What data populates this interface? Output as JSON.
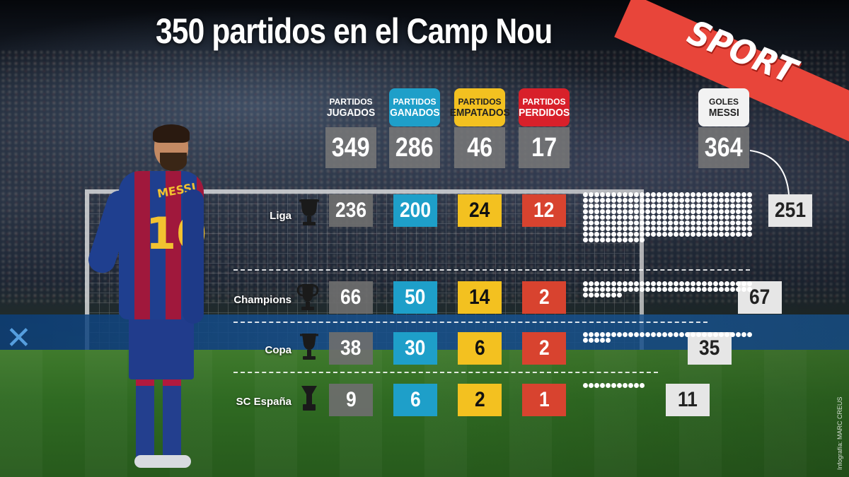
{
  "title": "350 partidos en el Camp Nou",
  "brand": "SPORT",
  "credit": "Infografía: MARC CREUS",
  "player": {
    "shirt_name": "MESSI",
    "shirt_number": "10"
  },
  "headers": [
    {
      "line1": "PARTIDOS",
      "line2": "JUGADOS",
      "style": "plain"
    },
    {
      "line1": "PARTIDOS",
      "line2": "GANADOS",
      "style": "blue"
    },
    {
      "line1": "PARTIDOS",
      "line2": "EMPATADOS",
      "style": "yellow"
    },
    {
      "line1": "PARTIDOS",
      "line2": "PERDIDOS",
      "style": "red"
    },
    {
      "line1": "GOLES",
      "line2": "MESSI",
      "style": "white"
    }
  ],
  "totals": {
    "jugados": "349",
    "ganados": "286",
    "empatados": "46",
    "perdidos": "17",
    "goles": "364"
  },
  "rows": [
    {
      "label": "Liga",
      "trophy": "liga-trophy-icon",
      "jugados": "236",
      "ganados": "200",
      "empatados": "24",
      "perdidos": "12",
      "goles": "251"
    },
    {
      "label": "Champions",
      "trophy": "champions-trophy-icon",
      "jugados": "66",
      "ganados": "50",
      "empatados": "14",
      "perdidos": "2",
      "goles": "67"
    },
    {
      "label": "Copa",
      "trophy": "copa-trophy-icon",
      "jugados": "38",
      "ganados": "30",
      "empatados": "6",
      "perdidos": "2",
      "goles": "35"
    },
    {
      "label": "SC España",
      "trophy": "supercopa-trophy-icon",
      "jugados": "9",
      "ganados": "6",
      "empatados": "2",
      "perdidos": "1",
      "goles": "11"
    }
  ],
  "colors": {
    "ganados": "#1e9fc9",
    "empatados": "#f3c120",
    "perdidos": "#d8432f",
    "jugados": "#6e6e6e",
    "brand": "#e8453a"
  }
}
